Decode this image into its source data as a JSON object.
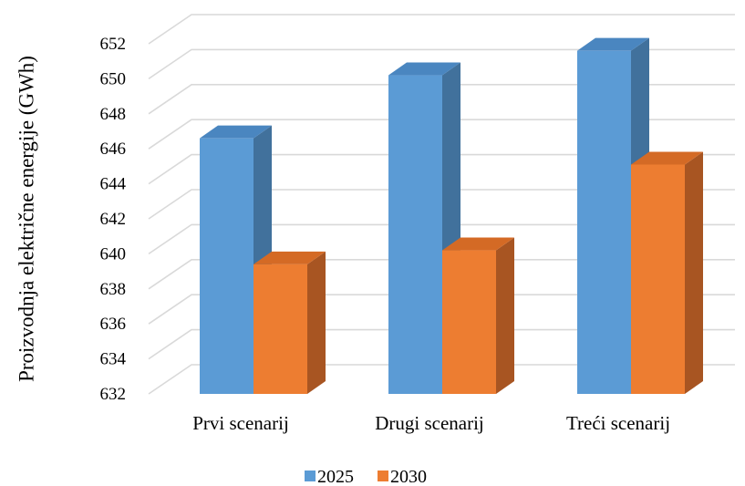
{
  "chart_data": {
    "type": "bar",
    "style": "3d-clustered-column",
    "categories": [
      "Prvi scenarij",
      "Drugi scenarij",
      "Treći scenarij"
    ],
    "series": [
      {
        "name": "2025",
        "values": [
          646.6,
          650.2,
          651.6
        ],
        "color": "#5b9bd5",
        "side_color": "#41719c",
        "top_color": "#4a86c0"
      },
      {
        "name": "2030",
        "values": [
          639.4,
          640.2,
          645.1
        ],
        "color": "#ed7d31",
        "side_color": "#a85522",
        "top_color": "#d46a25"
      }
    ],
    "ylabel": "Proizvodnja električne energije (GWh)",
    "xlabel": "",
    "ylim": [
      632,
      652
    ],
    "yticks": [
      "632",
      "634",
      "636",
      "638",
      "640",
      "642",
      "644",
      "646",
      "648",
      "650",
      "652"
    ],
    "grid": true,
    "legend_position": "bottom"
  }
}
